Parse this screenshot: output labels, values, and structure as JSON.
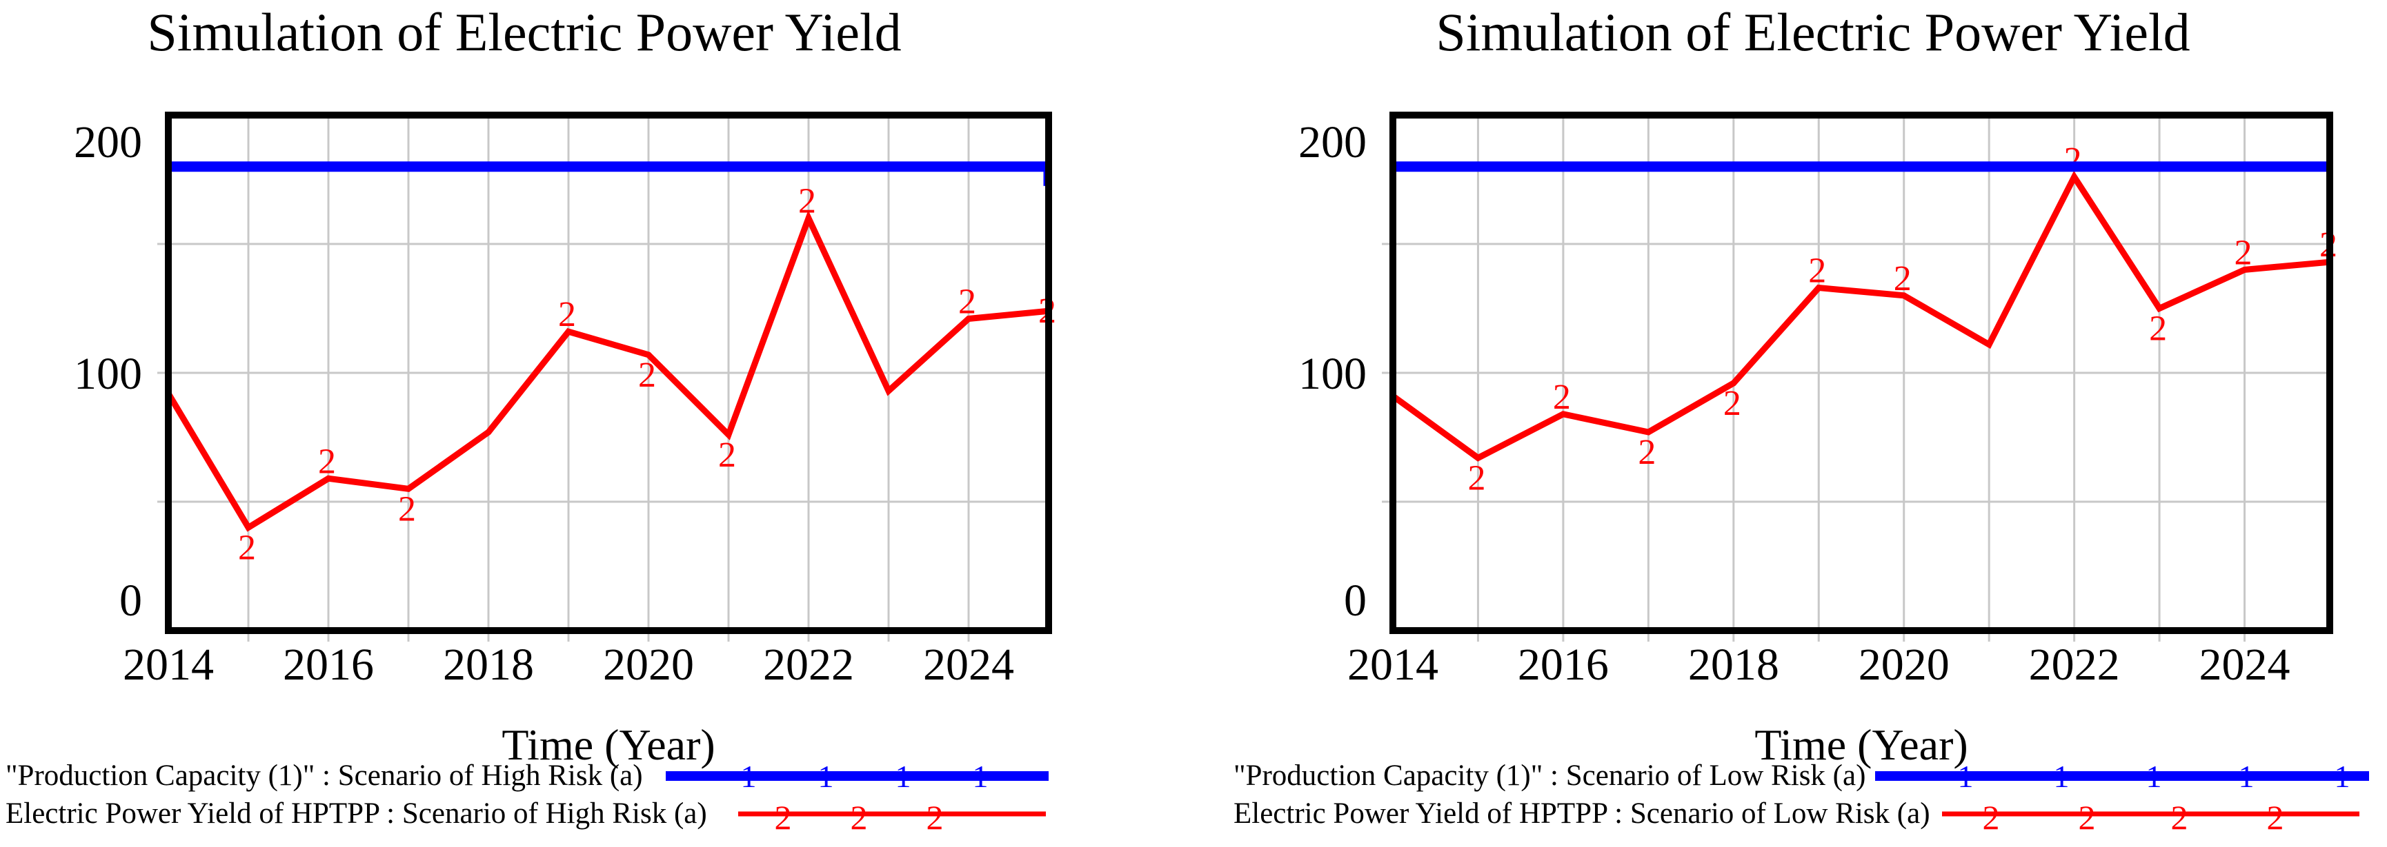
{
  "page": {
    "background": "#ffffff"
  },
  "colors": {
    "capacity_line": "#0000ff",
    "yield_line": "#ff0000",
    "grid": "#c8c8c8",
    "frame": "#000000",
    "text": "#000000"
  },
  "chart_data": [
    {
      "type": "line",
      "title": "Simulation of Electric Power Yield",
      "xlabel": "Time (Year)",
      "x": [
        2014,
        2015,
        2016,
        2017,
        2018,
        2019,
        2020,
        2021,
        2022,
        2023,
        2024,
        2025
      ],
      "xlim": [
        2014,
        2025
      ],
      "ylim": [
        0,
        200
      ],
      "x_tick_labels": [
        "2014",
        "2016",
        "2018",
        "2020",
        "2022",
        "2024"
      ],
      "y_tick_labels": [
        "0",
        "100",
        "200"
      ],
      "grid_y": [
        50,
        100,
        150
      ],
      "grid": "on",
      "legend_position": "bottom-left",
      "series": [
        {
          "name": "\"Production Capacity (1)\" : Scenario of High Risk (a)",
          "type": "constant",
          "value": 180,
          "color": "#0000ff",
          "marker": "1"
        },
        {
          "name": "Electric Power Yield of HPTPP : Scenario of High Risk (a)",
          "type": "line",
          "color": "#ff0000",
          "marker": "2",
          "values": [
            92,
            40,
            59,
            55,
            77,
            116,
            107,
            76,
            160,
            93,
            121,
            124
          ],
          "marker_points": [
            {
              "year": 2015,
              "pos": "below"
            },
            {
              "year": 2016,
              "pos": "above"
            },
            {
              "year": 2017,
              "pos": "below"
            },
            {
              "year": 2019,
              "pos": "above"
            },
            {
              "year": 2020,
              "pos": "below"
            },
            {
              "year": 2021,
              "pos": "below"
            },
            {
              "year": 2022,
              "pos": "above"
            },
            {
              "year": 2024,
              "pos": "above"
            },
            {
              "year": 2025,
              "pos": "mid"
            }
          ]
        }
      ]
    },
    {
      "type": "line",
      "title": "Simulation of Electric Power Yield",
      "xlabel": "Time (Year)",
      "x": [
        2014,
        2015,
        2016,
        2017,
        2018,
        2019,
        2020,
        2021,
        2022,
        2023,
        2024,
        2025
      ],
      "xlim": [
        2014,
        2025
      ],
      "ylim": [
        0,
        200
      ],
      "x_tick_labels": [
        "2014",
        "2016",
        "2018",
        "2020",
        "2022",
        "2024"
      ],
      "y_tick_labels": [
        "0",
        "100",
        "200"
      ],
      "grid_y": [
        50,
        100,
        150
      ],
      "grid": "on",
      "legend_position": "bottom-left",
      "series": [
        {
          "name": "\"Production Capacity (1)\" : Scenario of Low Risk (a)",
          "type": "constant",
          "value": 180,
          "color": "#0000ff",
          "marker": "1"
        },
        {
          "name": "Electric Power Yield of HPTPP : Scenario of Low Risk (a)",
          "type": "line",
          "color": "#ff0000",
          "marker": "2",
          "values": [
            91,
            67,
            84,
            77,
            96,
            133,
            130,
            111,
            176,
            125,
            140,
            143
          ],
          "marker_points": [
            {
              "year": 2015,
              "pos": "below"
            },
            {
              "year": 2016,
              "pos": "above"
            },
            {
              "year": 2017,
              "pos": "below"
            },
            {
              "year": 2018,
              "pos": "below"
            },
            {
              "year": 2019,
              "pos": "above"
            },
            {
              "year": 2020,
              "pos": "above"
            },
            {
              "year": 2022,
              "pos": "above"
            },
            {
              "year": 2023,
              "pos": "below"
            },
            {
              "year": 2024,
              "pos": "above"
            },
            {
              "year": 2025,
              "pos": "above"
            }
          ]
        }
      ]
    }
  ]
}
